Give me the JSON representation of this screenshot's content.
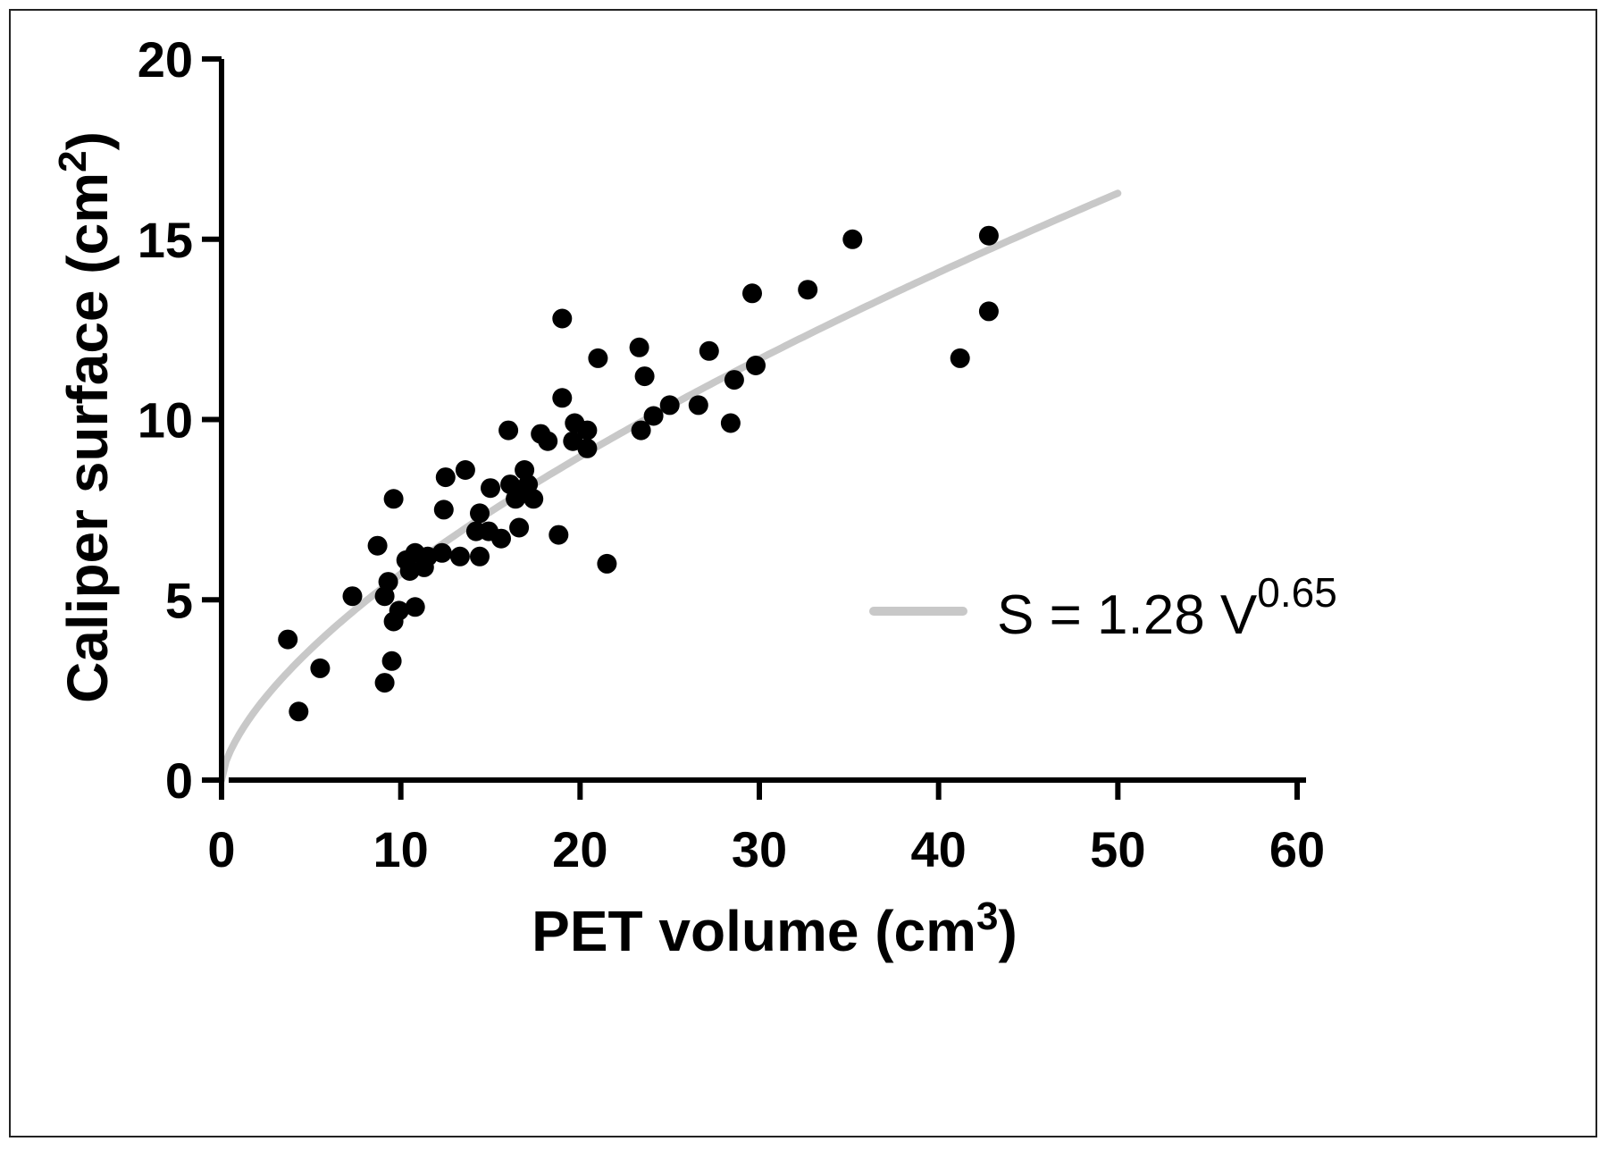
{
  "chart_data": {
    "type": "scatter",
    "xlabel": "PET volume (cm",
    "xlabel_sup": "3",
    "xlabel_end": ")",
    "ylabel": "Caliper surface (cm",
    "ylabel_sup": "2",
    "ylabel_end": ")",
    "xlim": [
      0,
      60
    ],
    "ylim": [
      0,
      20
    ],
    "xticks": [
      0,
      10,
      20,
      30,
      40,
      50,
      60
    ],
    "yticks": [
      0,
      5,
      10,
      15,
      20
    ],
    "grid": false,
    "legend_position": "center-right",
    "fit": {
      "label_main": "S = 1.28 V",
      "label_sup": "0.65",
      "coefficient": 1.28,
      "exponent": 0.65,
      "x_range": [
        0,
        50
      ],
      "color": "#c8c8c8"
    },
    "series": [
      {
        "color": "#000000",
        "points": [
          [
            3.7,
            3.9
          ],
          [
            4.3,
            1.9
          ],
          [
            5.5,
            3.1
          ],
          [
            7.3,
            5.1
          ],
          [
            8.7,
            6.5
          ],
          [
            9.1,
            2.7
          ],
          [
            9.1,
            5.1
          ],
          [
            9.3,
            5.5
          ],
          [
            9.5,
            3.3
          ],
          [
            9.6,
            4.4
          ],
          [
            9.6,
            7.8
          ],
          [
            9.9,
            4.7
          ],
          [
            10.3,
            6.1
          ],
          [
            10.5,
            5.8
          ],
          [
            10.8,
            4.8
          ],
          [
            10.8,
            6.3
          ],
          [
            11.3,
            5.9
          ],
          [
            11.5,
            6.2
          ],
          [
            12.3,
            6.3
          ],
          [
            12.4,
            7.5
          ],
          [
            12.5,
            8.4
          ],
          [
            13.3,
            6.2
          ],
          [
            13.6,
            8.6
          ],
          [
            14.2,
            6.9
          ],
          [
            14.4,
            6.2
          ],
          [
            14.4,
            7.4
          ],
          [
            14.9,
            6.9
          ],
          [
            15.0,
            8.1
          ],
          [
            15.6,
            6.7
          ],
          [
            16.0,
            9.7
          ],
          [
            16.1,
            8.2
          ],
          [
            16.4,
            7.8
          ],
          [
            16.6,
            7.0
          ],
          [
            16.8,
            8.0
          ],
          [
            16.9,
            8.6
          ],
          [
            17.1,
            8.2
          ],
          [
            17.4,
            7.8
          ],
          [
            17.8,
            9.6
          ],
          [
            18.2,
            9.4
          ],
          [
            18.8,
            6.8
          ],
          [
            19.0,
            10.6
          ],
          [
            19.0,
            12.8
          ],
          [
            19.6,
            9.4
          ],
          [
            19.7,
            9.9
          ],
          [
            20.4,
            9.2
          ],
          [
            20.4,
            9.7
          ],
          [
            21.0,
            11.7
          ],
          [
            21.5,
            6.0
          ],
          [
            23.3,
            12.0
          ],
          [
            23.4,
            9.7
          ],
          [
            23.6,
            11.2
          ],
          [
            24.1,
            10.1
          ],
          [
            25.0,
            10.4
          ],
          [
            26.6,
            10.4
          ],
          [
            27.2,
            11.9
          ],
          [
            28.4,
            9.9
          ],
          [
            28.6,
            11.1
          ],
          [
            29.6,
            13.5
          ],
          [
            29.8,
            11.5
          ],
          [
            32.7,
            13.6
          ],
          [
            35.2,
            15.0
          ],
          [
            41.2,
            11.7
          ],
          [
            42.8,
            15.1
          ],
          [
            42.8,
            13.0
          ]
        ]
      }
    ]
  }
}
